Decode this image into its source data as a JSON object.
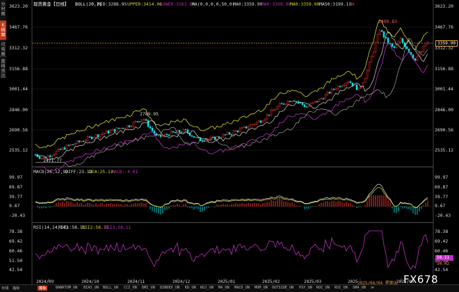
{
  "price_axis": [
    "3623.20",
    "3467.76",
    "3312.32",
    "3156.88",
    "3001.44",
    "2846.00",
    "2690.56",
    "2535.12"
  ],
  "price_axis_right": [
    "3623.20",
    "3467.76",
    "3312.32",
    "3156.88",
    "3001.44",
    "2846.00",
    "2690.56",
    "2535.12"
  ],
  "current_price": "3359.90",
  "header": {
    "name": "现货黄金【日线】",
    "boll": "BOLL(20,2)",
    "mid": "MID:3288.95",
    "upper": "UPPER:3414.06",
    "lower": "LOWER:3163.84",
    "ma": "MA(0,0,0,0,50,0)",
    "ma1": "MA0:3359.90",
    "ma2": "MA0:3359.90",
    "ma3": "MA0:3359.90",
    "ma4": "MA50:3199.13",
    "ma5": "MA"
  },
  "annotations": {
    "high": "3499.83",
    "mid": "2789.95",
    "low": "2471.77"
  },
  "macd": {
    "label": "MACD(26,12,9)",
    "diff": "DIFF:23.13",
    "dea": "DEA:25.13",
    "macd": "MACD:-4.01",
    "axis": [
      "99.97",
      "69.87",
      "39.77",
      "9.67",
      "-20.43"
    ]
  },
  "rsi": {
    "label": "RSI(14,14,14)",
    "rsi1": "RSI1:58.11",
    "rsi2": "RSI2:58.11",
    "rsi3": "RSI3:58.11",
    "axis": [
      "78.38",
      "69.42",
      "60.46",
      "51.50",
      "42.54"
    ],
    "current": "58.11",
    "current2": "50.42"
  },
  "dates": [
    "2024/09",
    "2024/10",
    "2024/11",
    "2024/12",
    "2025/01",
    "2025/02",
    "2025/03",
    "2025/04/04 星期五",
    "2025/05"
  ],
  "date_prefix": "2025",
  "side_tabs": [
    "分时图",
    "K线图",
    "闪电图",
    "盘档资讯"
  ],
  "bottom_tabs": [
    "日线",
    "指标",
    "模板",
    "BANKTOM_UN",
    "BIAS_UN",
    "BOLL_UN",
    "CCI_UN",
    "DMI_UN",
    "DINDEX_UN",
    "KD_UN",
    "KDJ_UN",
    "MA_UN",
    "MACD_UN",
    "MOM_UN",
    "OUTSIDE_UN",
    "PSY_UN",
    "ROC_UN",
    "RSI_UN",
    "SMA_UN",
    "≫"
  ],
  "logo": "FX678",
  "colors": {
    "up": "#ff3333",
    "down": "#00e5e5",
    "upper": "#d8d830",
    "lower": "#c030c0",
    "mid": "#d8d8d8",
    "ma50": "#e0a020",
    "rsi": "#c030c0"
  }
}
